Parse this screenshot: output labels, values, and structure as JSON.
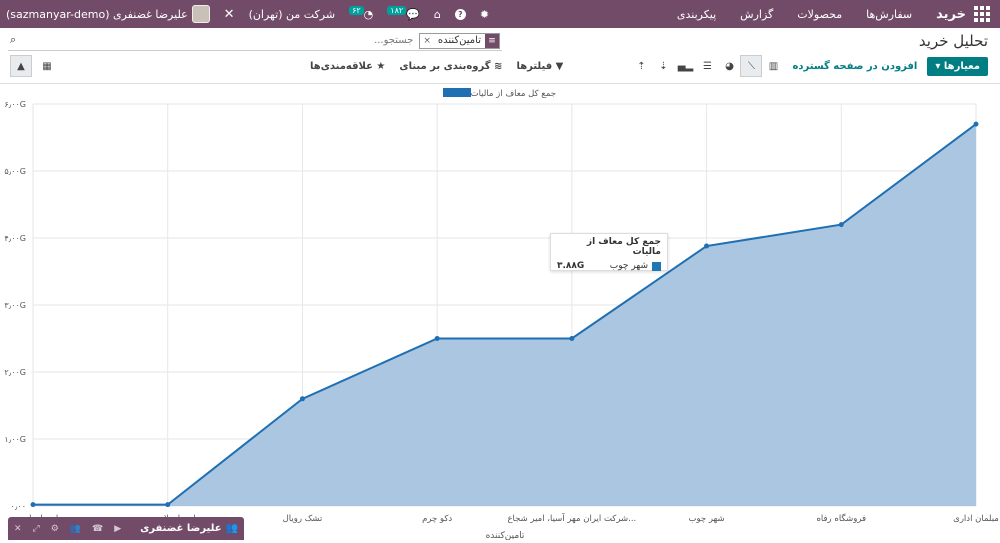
{
  "topbar": {
    "brand": "خرید",
    "menu": [
      "سفارش‌ها",
      "محصولات",
      "گزارش",
      "پیکربندی"
    ],
    "user_name": "علیرضا غضنفری (sazmanyar-demo)",
    "company": "شرکت من (تهران)",
    "activity_count": "۶۲",
    "messages_count": "۱۸۲"
  },
  "header": {
    "title": "تحلیل خرید",
    "search_facet": "تامین‌کننده",
    "search_placeholder": "جستجو...",
    "measures_label": "معیارها",
    "insert_label": "افزودن در صفحه گسترده",
    "filters_label": "فیلترها",
    "groupby_label": "گروه‌بندی بر مبنای",
    "favorites_label": "علاقه‌مندی‌ها"
  },
  "chart_data": {
    "type": "area",
    "legend": [
      "جمع کل معاف از مالیات"
    ],
    "xlabel": "تامین‌کننده",
    "categories": [
      "مبلمان اداری",
      "فروشگاه رفاه",
      "شهر چوب",
      "شرکت ایران مهر آسیا، امیر شجاع...",
      "دکو چرم",
      "تشک رویال",
      "احسان لاجوردی",
      "احسان احمدی"
    ],
    "values": [
      5.7,
      4.2,
      3.88,
      2.5,
      2.5,
      1.6,
      0.02,
      0.02
    ],
    "ylim": [
      0,
      6
    ],
    "yticks": [
      "۰٫۰۰",
      "۱٫۰۰G",
      "۲٫۰۰G",
      "۳٫۰۰G",
      "۴٫۰۰G",
      "۵٫۰۰G",
      "۶٫۰۰G"
    ],
    "colors": {
      "line": "#1f6fb3",
      "fill": "#aac6e0"
    }
  },
  "tooltip": {
    "title": "جمع کل معاف از مالیات",
    "label": "شهر چوب",
    "value": "۳.۸۸G"
  },
  "chat": {
    "name": "علیرضا غضنفری"
  }
}
